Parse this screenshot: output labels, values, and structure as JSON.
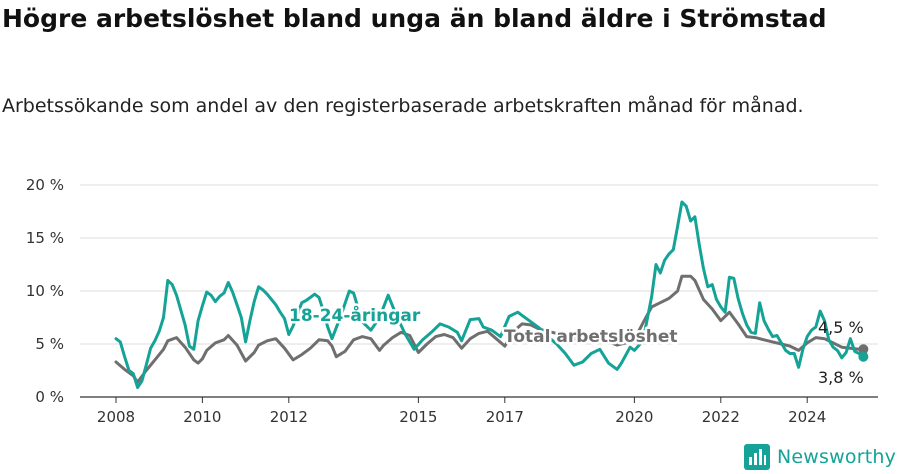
{
  "chart_data": {
    "type": "line",
    "title": "Högre arbetslöshet bland unga än bland äldre i Strömstad",
    "subtitle": "Arbetssökande som andel av den registerbaserade arbetskraften månad för månad.",
    "ylim": [
      0,
      20
    ],
    "y_ticks": [
      "0 %",
      "5 %",
      "10 %",
      "15 %",
      "20 %"
    ],
    "x_ticks": [
      "2008",
      "2010",
      "2012",
      "2015",
      "2017",
      "2020",
      "2022",
      "2024"
    ],
    "grid": true,
    "colors": {
      "youth": "#14a396",
      "total": "#6f6f6f"
    },
    "series": [
      {
        "name": "18-24-åringar",
        "color": "#14a396",
        "points": [
          [
            2008.0,
            5.5
          ],
          [
            2008.1,
            5.2
          ],
          [
            2008.2,
            3.8
          ],
          [
            2008.3,
            2.5
          ],
          [
            2008.4,
            2.2
          ],
          [
            2008.5,
            0.9
          ],
          [
            2008.6,
            1.5
          ],
          [
            2008.7,
            3.0
          ],
          [
            2008.8,
            4.6
          ],
          [
            2008.9,
            5.3
          ],
          [
            2009.0,
            6.2
          ],
          [
            2009.1,
            7.5
          ],
          [
            2009.2,
            11.0
          ],
          [
            2009.3,
            10.6
          ],
          [
            2009.4,
            9.6
          ],
          [
            2009.5,
            8.2
          ],
          [
            2009.6,
            6.8
          ],
          [
            2009.7,
            4.8
          ],
          [
            2009.8,
            4.5
          ],
          [
            2009.9,
            7.2
          ],
          [
            2010.0,
            8.6
          ],
          [
            2010.1,
            9.9
          ],
          [
            2010.2,
            9.6
          ],
          [
            2010.3,
            9.0
          ],
          [
            2010.4,
            9.5
          ],
          [
            2010.5,
            9.8
          ],
          [
            2010.6,
            10.8
          ],
          [
            2010.7,
            9.9
          ],
          [
            2010.8,
            8.7
          ],
          [
            2010.9,
            7.5
          ],
          [
            2011.0,
            5.2
          ],
          [
            2011.1,
            7.2
          ],
          [
            2011.2,
            9.0
          ],
          [
            2011.3,
            10.4
          ],
          [
            2011.4,
            10.1
          ],
          [
            2011.5,
            9.7
          ],
          [
            2011.6,
            9.2
          ],
          [
            2011.7,
            8.7
          ],
          [
            2011.8,
            8.0
          ],
          [
            2011.9,
            7.4
          ],
          [
            2012.0,
            5.9
          ],
          [
            2012.1,
            6.7
          ],
          [
            2012.2,
            7.8
          ],
          [
            2012.3,
            8.9
          ],
          [
            2012.4,
            9.1
          ],
          [
            2012.5,
            9.4
          ],
          [
            2012.6,
            9.7
          ],
          [
            2012.7,
            9.4
          ],
          [
            2012.8,
            8.1
          ],
          [
            2012.9,
            6.6
          ],
          [
            2013.0,
            5.5
          ],
          [
            2013.2,
            7.6
          ],
          [
            2013.4,
            10.0
          ],
          [
            2013.5,
            9.8
          ],
          [
            2013.7,
            7.1
          ],
          [
            2013.9,
            6.3
          ],
          [
            2014.1,
            7.5
          ],
          [
            2014.3,
            9.6
          ],
          [
            2014.5,
            7.6
          ],
          [
            2014.7,
            5.9
          ],
          [
            2014.9,
            4.5
          ],
          [
            2015.1,
            5.4
          ],
          [
            2015.3,
            6.1
          ],
          [
            2015.5,
            6.9
          ],
          [
            2015.7,
            6.6
          ],
          [
            2015.9,
            6.1
          ],
          [
            2016.0,
            5.3
          ],
          [
            2016.2,
            7.3
          ],
          [
            2016.4,
            7.4
          ],
          [
            2016.5,
            6.6
          ],
          [
            2016.7,
            6.3
          ],
          [
            2016.9,
            5.7
          ],
          [
            2017.1,
            7.6
          ],
          [
            2017.3,
            8.0
          ],
          [
            2017.4,
            7.7
          ],
          [
            2017.6,
            7.1
          ],
          [
            2017.8,
            6.5
          ],
          [
            2018.0,
            5.7
          ],
          [
            2018.2,
            5.0
          ],
          [
            2018.4,
            4.1
          ],
          [
            2018.6,
            3.0
          ],
          [
            2018.8,
            3.3
          ],
          [
            2019.0,
            4.1
          ],
          [
            2019.2,
            4.5
          ],
          [
            2019.4,
            3.2
          ],
          [
            2019.6,
            2.6
          ],
          [
            2019.7,
            3.2
          ],
          [
            2019.9,
            4.7
          ],
          [
            2020.0,
            4.4
          ],
          [
            2020.2,
            5.3
          ],
          [
            2020.4,
            9.5
          ],
          [
            2020.5,
            12.5
          ],
          [
            2020.6,
            11.7
          ],
          [
            2020.7,
            12.9
          ],
          [
            2020.8,
            13.5
          ],
          [
            2020.9,
            13.9
          ],
          [
            2021.0,
            16.1
          ],
          [
            2021.1,
            18.4
          ],
          [
            2021.2,
            18.0
          ],
          [
            2021.3,
            16.6
          ],
          [
            2021.4,
            17.0
          ],
          [
            2021.5,
            14.4
          ],
          [
            2021.6,
            12.1
          ],
          [
            2021.7,
            10.4
          ],
          [
            2021.8,
            10.6
          ],
          [
            2021.9,
            9.2
          ],
          [
            2022.0,
            8.5
          ],
          [
            2022.1,
            8.0
          ],
          [
            2022.2,
            11.3
          ],
          [
            2022.3,
            11.2
          ],
          [
            2022.4,
            9.3
          ],
          [
            2022.5,
            7.9
          ],
          [
            2022.6,
            6.8
          ],
          [
            2022.7,
            6.1
          ],
          [
            2022.8,
            6.0
          ],
          [
            2022.9,
            8.9
          ],
          [
            2023.0,
            7.2
          ],
          [
            2023.1,
            6.4
          ],
          [
            2023.2,
            5.7
          ],
          [
            2023.3,
            5.8
          ],
          [
            2023.4,
            5.1
          ],
          [
            2023.5,
            4.4
          ],
          [
            2023.6,
            4.1
          ],
          [
            2023.7,
            4.1
          ],
          [
            2023.8,
            2.8
          ],
          [
            2023.9,
            4.5
          ],
          [
            2024.0,
            5.7
          ],
          [
            2024.1,
            6.3
          ],
          [
            2024.2,
            6.6
          ],
          [
            2024.3,
            8.1
          ],
          [
            2024.4,
            7.2
          ],
          [
            2024.5,
            5.4
          ],
          [
            2024.6,
            4.7
          ],
          [
            2024.7,
            4.4
          ],
          [
            2024.8,
            3.7
          ],
          [
            2024.9,
            4.2
          ],
          [
            2025.0,
            5.5
          ],
          [
            2025.1,
            4.3
          ],
          [
            2025.2,
            4.1
          ],
          [
            2025.3,
            3.8
          ]
        ]
      },
      {
        "name": "Total arbetslöshet",
        "color": "#6f6f6f",
        "points": [
          [
            2008.0,
            3.3
          ],
          [
            2008.2,
            2.6
          ],
          [
            2008.4,
            2.0
          ],
          [
            2008.5,
            1.4
          ],
          [
            2008.7,
            2.5
          ],
          [
            2008.9,
            3.5
          ],
          [
            2009.1,
            4.5
          ],
          [
            2009.2,
            5.3
          ],
          [
            2009.4,
            5.6
          ],
          [
            2009.6,
            4.7
          ],
          [
            2009.8,
            3.5
          ],
          [
            2009.9,
            3.2
          ],
          [
            2010.0,
            3.6
          ],
          [
            2010.1,
            4.4
          ],
          [
            2010.3,
            5.1
          ],
          [
            2010.5,
            5.4
          ],
          [
            2010.6,
            5.8
          ],
          [
            2010.8,
            4.9
          ],
          [
            2011.0,
            3.4
          ],
          [
            2011.2,
            4.2
          ],
          [
            2011.3,
            4.9
          ],
          [
            2011.5,
            5.3
          ],
          [
            2011.7,
            5.5
          ],
          [
            2011.9,
            4.6
          ],
          [
            2012.1,
            3.5
          ],
          [
            2012.3,
            4.0
          ],
          [
            2012.5,
            4.6
          ],
          [
            2012.7,
            5.4
          ],
          [
            2012.9,
            5.3
          ],
          [
            2013.0,
            4.8
          ],
          [
            2013.1,
            3.8
          ],
          [
            2013.3,
            4.3
          ],
          [
            2013.5,
            5.4
          ],
          [
            2013.7,
            5.7
          ],
          [
            2013.9,
            5.5
          ],
          [
            2014.1,
            4.4
          ],
          [
            2014.2,
            4.9
          ],
          [
            2014.4,
            5.6
          ],
          [
            2014.6,
            6.1
          ],
          [
            2014.8,
            5.8
          ],
          [
            2015.0,
            4.2
          ],
          [
            2015.2,
            5.0
          ],
          [
            2015.4,
            5.7
          ],
          [
            2015.6,
            5.9
          ],
          [
            2015.8,
            5.6
          ],
          [
            2016.0,
            4.6
          ],
          [
            2016.2,
            5.5
          ],
          [
            2016.4,
            6.0
          ],
          [
            2016.6,
            6.2
          ],
          [
            2016.8,
            5.5
          ],
          [
            2017.0,
            4.8
          ],
          [
            2017.2,
            6.2
          ],
          [
            2017.4,
            6.9
          ],
          [
            2017.6,
            6.8
          ],
          [
            2017.8,
            6.4
          ],
          [
            2018.0,
            6.2
          ],
          [
            2018.2,
            6.0
          ],
          [
            2018.4,
            5.7
          ],
          [
            2018.6,
            5.5
          ],
          [
            2018.8,
            5.3
          ],
          [
            2019.0,
            5.4
          ],
          [
            2019.2,
            5.6
          ],
          [
            2019.4,
            5.2
          ],
          [
            2019.6,
            4.9
          ],
          [
            2019.8,
            5.1
          ],
          [
            2020.0,
            5.4
          ],
          [
            2020.2,
            7.0
          ],
          [
            2020.4,
            8.5
          ],
          [
            2020.6,
            8.9
          ],
          [
            2020.8,
            9.3
          ],
          [
            2021.0,
            10.0
          ],
          [
            2021.1,
            11.4
          ],
          [
            2021.3,
            11.4
          ],
          [
            2021.4,
            11.0
          ],
          [
            2021.6,
            9.2
          ],
          [
            2021.8,
            8.3
          ],
          [
            2022.0,
            7.2
          ],
          [
            2022.2,
            8.0
          ],
          [
            2022.4,
            6.9
          ],
          [
            2022.6,
            5.7
          ],
          [
            2022.8,
            5.6
          ],
          [
            2023.0,
            5.4
          ],
          [
            2023.2,
            5.2
          ],
          [
            2023.4,
            5.0
          ],
          [
            2023.6,
            4.8
          ],
          [
            2023.8,
            4.4
          ],
          [
            2024.0,
            5.1
          ],
          [
            2024.2,
            5.6
          ],
          [
            2024.4,
            5.5
          ],
          [
            2024.6,
            5.1
          ],
          [
            2024.8,
            4.7
          ],
          [
            2025.0,
            4.6
          ],
          [
            2025.2,
            4.5
          ],
          [
            2025.3,
            4.5
          ]
        ]
      }
    ],
    "end_values": {
      "youth": "3,8 %",
      "total": "4,5 %"
    }
  },
  "logo": {
    "icon": "newsworthy-bar-icon",
    "text": "Newsworthy"
  }
}
